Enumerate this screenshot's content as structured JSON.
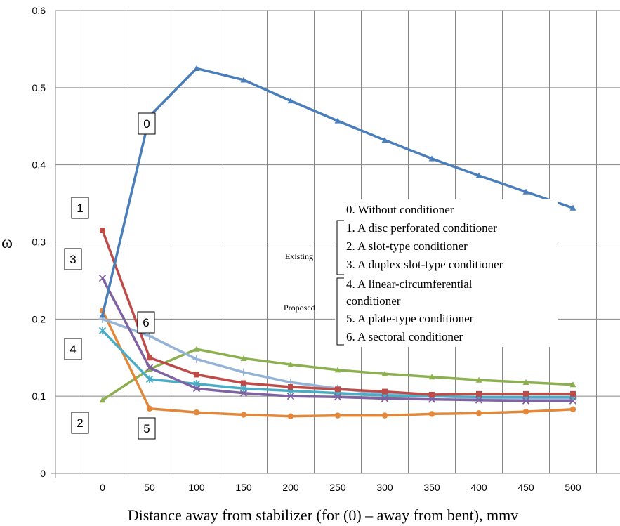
{
  "chart_data": {
    "type": "line",
    "xlabel": "Distance away from stabilizer (for (0) – away from bent), mmv",
    "ylabel": "ω",
    "x": [
      0,
      50,
      100,
      150,
      200,
      250,
      300,
      350,
      400,
      450,
      500
    ],
    "xlim": [
      -50,
      550
    ],
    "ylim": [
      0,
      0.6
    ],
    "y_ticks": [
      "0",
      "0,1",
      "0,2",
      "0,3",
      "0,4",
      "0,5",
      "0,6"
    ],
    "x_ticks": [
      "0",
      "50",
      "100",
      "150",
      "200",
      "250",
      "300",
      "350",
      "400",
      "450",
      "500"
    ],
    "grid": true,
    "series": [
      {
        "name": "0. Without conditioner",
        "callout": "0",
        "color": "#4a7ebb",
        "marker": "triangle",
        "values": [
          0.205,
          0.463,
          0.525,
          0.51,
          0.483,
          0.457,
          0.432,
          0.408,
          0.386,
          0.365,
          0.344
        ]
      },
      {
        "name": "1. A disc perforated conditioner",
        "callout": "1",
        "color": "#be4b48",
        "marker": "square",
        "values": [
          0.315,
          0.15,
          0.128,
          0.117,
          0.112,
          0.109,
          0.106,
          0.102,
          0.103,
          0.103,
          0.103
        ]
      },
      {
        "name": "2. A slot-type conditioner",
        "callout": "2",
        "color": "#8cb04f",
        "marker": "triangle",
        "values": [
          0.095,
          0.135,
          0.161,
          0.149,
          0.141,
          0.134,
          0.129,
          0.125,
          0.121,
          0.118,
          0.115
        ]
      },
      {
        "name": "3. A duplex slot-type conditioner",
        "callout": "3",
        "color": "#7e62a1",
        "marker": "x",
        "values": [
          0.253,
          0.137,
          0.11,
          0.104,
          0.1,
          0.099,
          0.097,
          0.096,
          0.095,
          0.094,
          0.094
        ]
      },
      {
        "name": "4. A linear-circumferential conditioner",
        "callout": "4",
        "color": "#4aacc5",
        "marker": "star",
        "values": [
          0.185,
          0.122,
          0.116,
          0.11,
          0.107,
          0.104,
          0.101,
          0.1,
          0.099,
          0.099,
          0.099
        ]
      },
      {
        "name": "5. A plate-type conditioner",
        "callout": "5",
        "color": "#e3873a",
        "marker": "circle",
        "values": [
          0.211,
          0.084,
          0.079,
          0.076,
          0.074,
          0.075,
          0.075,
          0.077,
          0.078,
          0.08,
          0.083
        ]
      },
      {
        "name": "6. A sectoral conditioner",
        "callout": "6",
        "color": "#95b3d7",
        "marker": "plus",
        "values": [
          0.2,
          0.178,
          0.148,
          0.131,
          0.118,
          0.11,
          0.103,
          0.1,
          0.098,
          0.097,
          0.097
        ]
      }
    ],
    "legend": {
      "placement": "center-right",
      "lines": [
        "0. Without conditioner",
        "1. A disc perforated conditioner",
        "2. A slot-type conditioner",
        "3. A duplex slot-type conditioner",
        "4. A linear-circumferential",
        "conditioner",
        "5. A plate-type conditioner",
        "6. A sectoral conditioner"
      ],
      "group_existing": "Existing",
      "group_proposed": "Proposed"
    }
  }
}
